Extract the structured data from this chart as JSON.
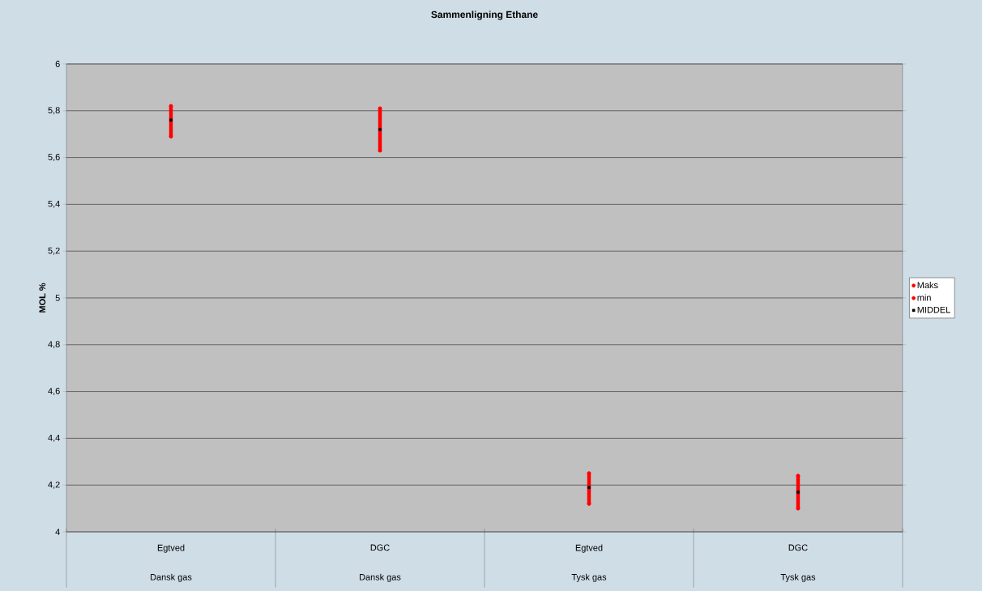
{
  "chart_data": {
    "type": "scatter",
    "title": "Sammenligning Ethane",
    "ylabel": "MOL %",
    "categories": [
      "Egtved",
      "DGC",
      "Egtved",
      "DGC"
    ],
    "annotations": [
      "Dansk gas",
      "Dansk gas",
      "Tysk gas",
      "Tysk gas"
    ],
    "series": [
      {
        "name": "Maks",
        "color": "#ff0000",
        "marker": "circle",
        "values": [
          5.82,
          5.81,
          4.25,
          4.24
        ]
      },
      {
        "name": "min",
        "color": "#ff0000",
        "marker": "circle",
        "values": [
          5.69,
          5.63,
          4.12,
          4.1
        ]
      },
      {
        "name": "MIDDEL",
        "color": "#000000",
        "marker": "square",
        "values": [
          5.76,
          5.72,
          4.19,
          4.17
        ]
      }
    ],
    "ylim": [
      4,
      6
    ],
    "yticks": [
      4,
      {
        "value": 4.2,
        "label": "4,2"
      },
      {
        "value": 4.4,
        "label": "4,4"
      },
      {
        "value": 4.6,
        "label": "4,6"
      },
      {
        "value": 4.8,
        "label": "4,8"
      },
      5,
      {
        "value": 5.2,
        "label": "5,2"
      },
      {
        "value": 5.4,
        "label": "5,4"
      },
      {
        "value": 5.6,
        "label": "5,6"
      },
      {
        "value": 5.8,
        "label": "5,8"
      },
      6
    ],
    "grid": "y",
    "legend": "right"
  }
}
